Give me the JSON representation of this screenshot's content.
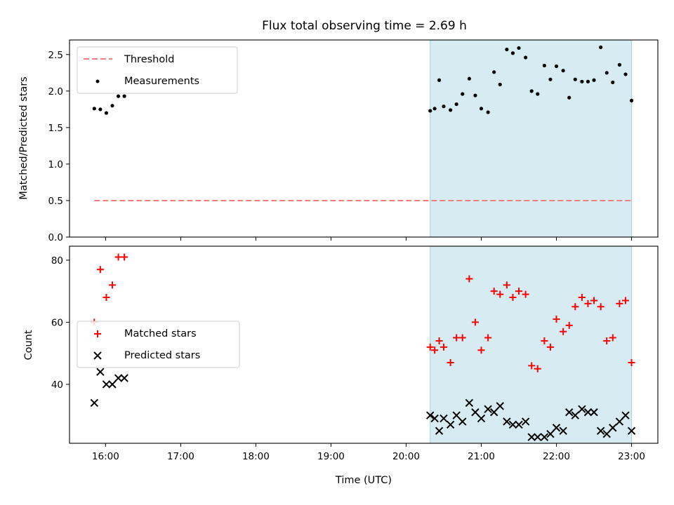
{
  "chart_data": [
    {
      "type": "scatter",
      "title": "Flux total observing time = 2.69 h",
      "ylabel": "Matched/Predicted stars",
      "xlabel": "",
      "xlim": [
        15.52,
        23.35
      ],
      "ylim": [
        0,
        2.7
      ],
      "yticks": [
        0.0,
        0.5,
        1.0,
        1.5,
        2.0,
        2.5
      ],
      "ytick_labels": [
        "0.0",
        "0.5",
        "1.0",
        "1.5",
        "2.0",
        "2.5"
      ],
      "shaded_span": [
        20.32,
        23.0
      ],
      "legend_position": "upper left",
      "threshold": {
        "name": "Threshold",
        "y": 0.5,
        "x": [
          15.85,
          23.0
        ],
        "color": "#f08080"
      },
      "series": [
        {
          "name": "Measurements",
          "marker": "dot",
          "color": "#000000",
          "x": [
            15.85,
            15.93,
            16.01,
            16.09,
            16.17,
            16.25,
            20.32,
            20.38,
            20.44,
            20.5,
            20.59,
            20.67,
            20.75,
            20.84,
            20.92,
            21.0,
            21.09,
            21.17,
            21.25,
            21.34,
            21.42,
            21.5,
            21.59,
            21.67,
            21.75,
            21.84,
            21.92,
            22.0,
            22.09,
            22.17,
            22.25,
            22.34,
            22.42,
            22.5,
            22.59,
            22.67,
            22.75,
            22.84,
            22.92,
            23.0
          ],
          "y": [
            1.76,
            1.75,
            1.7,
            1.8,
            1.93,
            1.93,
            1.73,
            1.76,
            2.15,
            1.79,
            1.74,
            1.82,
            1.96,
            2.17,
            1.94,
            1.76,
            1.71,
            2.26,
            2.09,
            2.57,
            2.52,
            2.59,
            2.46,
            2.0,
            1.96,
            2.35,
            2.16,
            2.34,
            2.28,
            1.91,
            2.16,
            2.13,
            2.13,
            2.15,
            2.6,
            2.25,
            2.12,
            2.36,
            2.23,
            1.87
          ]
        }
      ]
    },
    {
      "type": "scatter",
      "title": "",
      "ylabel": "Count",
      "xlabel": "Time (UTC)",
      "xlim": [
        15.52,
        23.35
      ],
      "ylim": [
        21.0,
        84.5
      ],
      "yticks": [
        40,
        60,
        80
      ],
      "ytick_labels": [
        "40",
        "60",
        "80"
      ],
      "xticks": [
        16,
        17,
        18,
        19,
        20,
        21,
        22,
        23
      ],
      "xtick_labels": [
        "16:00",
        "17:00",
        "18:00",
        "19:00",
        "20:00",
        "21:00",
        "22:00",
        "23:00"
      ],
      "shaded_span": [
        20.32,
        23.0
      ],
      "legend_position": "center left",
      "series": [
        {
          "name": "Matched stars",
          "marker": "plus",
          "color": "#ff0000",
          "x": [
            15.85,
            15.93,
            16.01,
            16.09,
            16.17,
            16.25,
            20.32,
            20.38,
            20.44,
            20.5,
            20.59,
            20.67,
            20.75,
            20.84,
            20.92,
            21.0,
            21.09,
            21.17,
            21.25,
            21.34,
            21.42,
            21.5,
            21.59,
            21.67,
            21.75,
            21.84,
            21.92,
            22.0,
            22.09,
            22.17,
            22.25,
            22.34,
            22.42,
            22.5,
            22.59,
            22.67,
            22.75,
            22.84,
            22.92,
            23.0
          ],
          "y": [
            60,
            77,
            68,
            72,
            81,
            81,
            52,
            51,
            54,
            52,
            47,
            55,
            55,
            74,
            60,
            51,
            55,
            70,
            69,
            72,
            68,
            70,
            69,
            46,
            45,
            54,
            52,
            61,
            57,
            59,
            65,
            68,
            66,
            67,
            65,
            54,
            55,
            66,
            67,
            47
          ]
        },
        {
          "name": "Predicted stars",
          "marker": "x",
          "color": "#000000",
          "x": [
            15.85,
            15.93,
            16.01,
            16.09,
            16.17,
            16.25,
            20.32,
            20.38,
            20.44,
            20.5,
            20.59,
            20.67,
            20.75,
            20.84,
            20.92,
            21.0,
            21.09,
            21.17,
            21.25,
            21.34,
            21.42,
            21.5,
            21.59,
            21.67,
            21.75,
            21.84,
            21.92,
            22.0,
            22.09,
            22.17,
            22.25,
            22.34,
            22.42,
            22.5,
            22.59,
            22.67,
            22.75,
            22.84,
            22.92,
            23.0
          ],
          "y": [
            34,
            44,
            40,
            40,
            42,
            42,
            30,
            29,
            25,
            29,
            27,
            30,
            28,
            34,
            31,
            29,
            32,
            31,
            33,
            28,
            27,
            27,
            28,
            23,
            23,
            23,
            24,
            26,
            25,
            31,
            30,
            32,
            31,
            31,
            25,
            24,
            26,
            28,
            30,
            25
          ]
        }
      ]
    }
  ]
}
